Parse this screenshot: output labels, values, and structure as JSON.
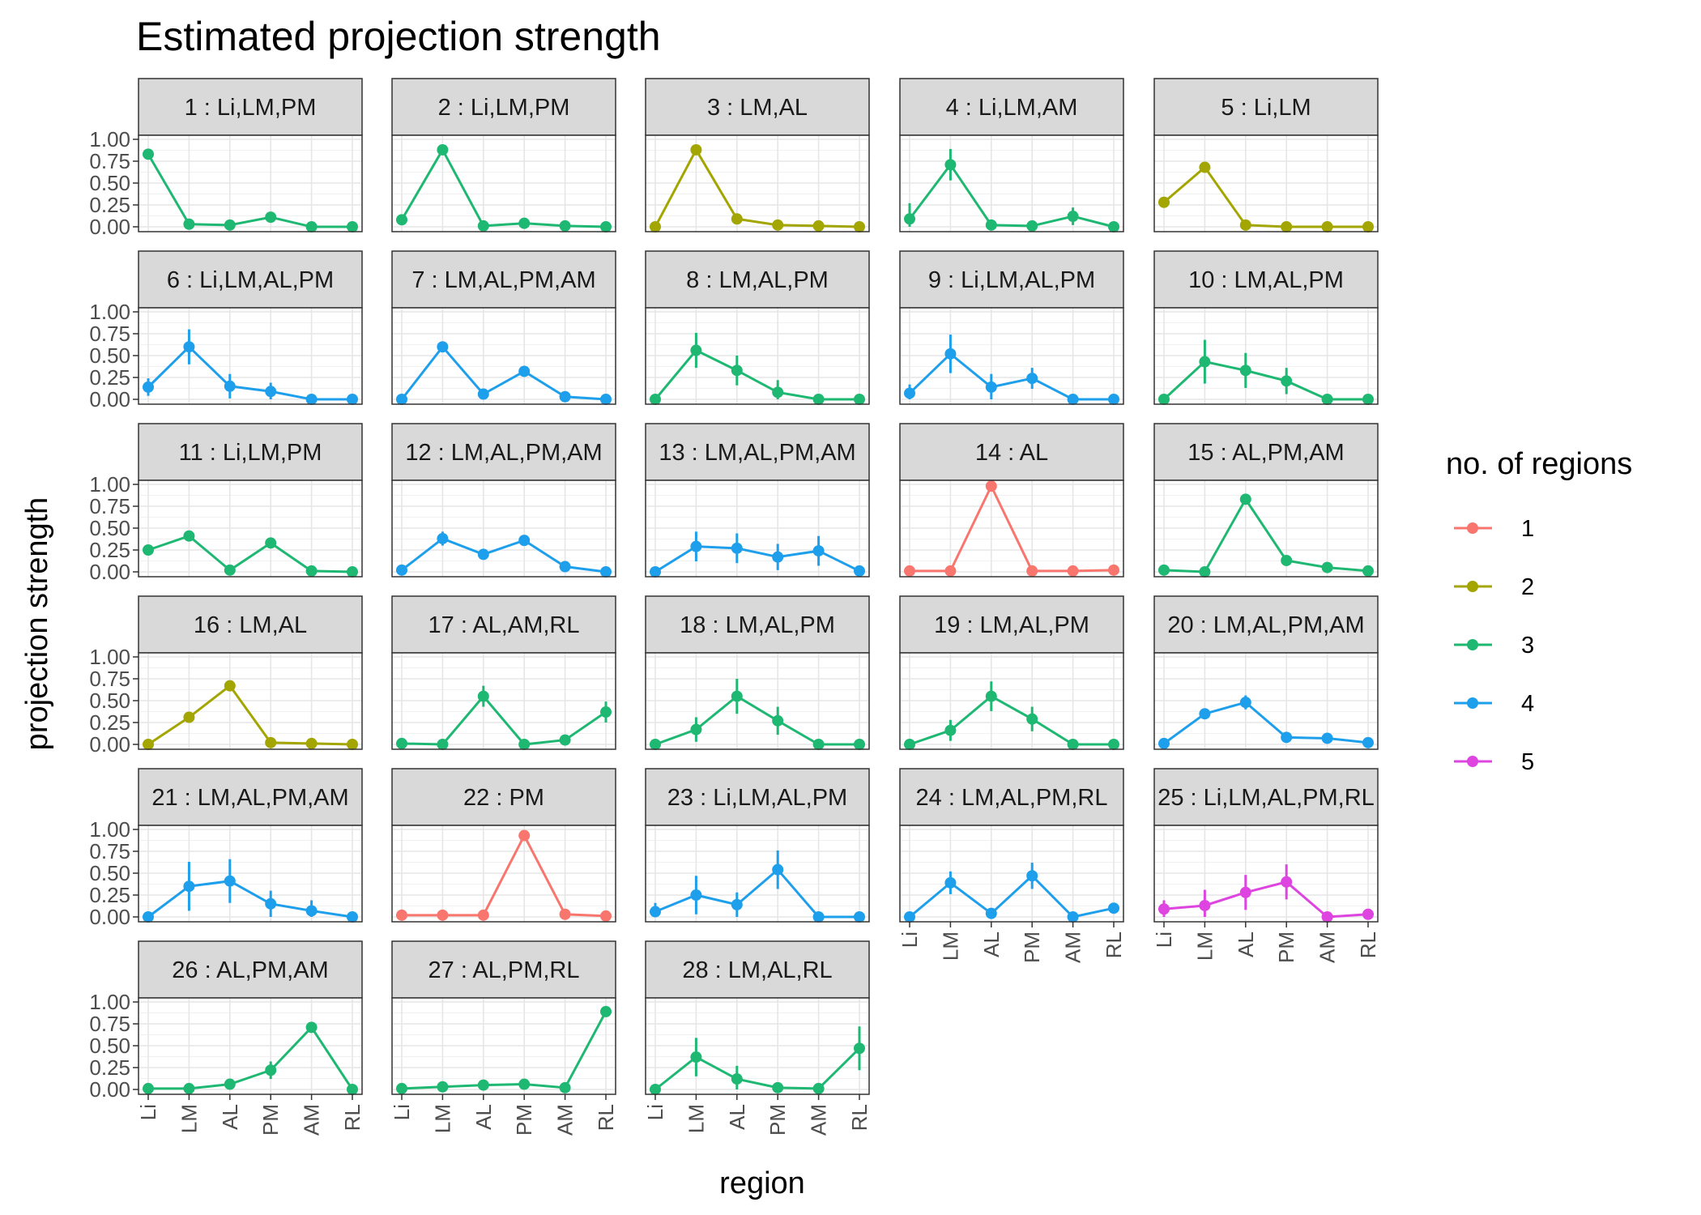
{
  "chart_data": {
    "type": "line",
    "title": "Estimated projection strength",
    "xlabel": "region",
    "ylabel": "projection strength",
    "x_categories": [
      "Li",
      "LM",
      "AL",
      "PM",
      "AM",
      "RL"
    ],
    "ylim": [
      0,
      1
    ],
    "y_ticks": [
      "0.00",
      "0.25",
      "0.50",
      "0.75",
      "1.00"
    ],
    "grid": true,
    "legend": {
      "title": "no. of regions",
      "position": "right",
      "entries": [
        {
          "label": "1",
          "color": "#F8766D"
        },
        {
          "label": "2",
          "color": "#A3A500"
        },
        {
          "label": "3",
          "color": "#1FB873"
        },
        {
          "label": "4",
          "color": "#1E9FEB"
        },
        {
          "label": "5",
          "color": "#DE44E0"
        }
      ]
    },
    "panels": [
      {
        "label": "1 : Li,LM,PM",
        "n_regions": 3,
        "values": [
          0.83,
          0.03,
          0.02,
          0.11,
          0.0,
          0.0
        ],
        "error": [
          0.06,
          0.0,
          0.0,
          0.06,
          0.0,
          0.0
        ]
      },
      {
        "label": "2 : Li,LM,PM",
        "n_regions": 3,
        "values": [
          0.08,
          0.88,
          0.01,
          0.04,
          0.01,
          0.0
        ],
        "error": [
          0.0,
          0.0,
          0.0,
          0.0,
          0.0,
          0.0
        ]
      },
      {
        "label": "3 : LM,AL",
        "n_regions": 2,
        "values": [
          0.0,
          0.88,
          0.09,
          0.02,
          0.01,
          0.0
        ],
        "error": [
          0.0,
          0.0,
          0.0,
          0.0,
          0.0,
          0.0
        ]
      },
      {
        "label": "4 : Li,LM,AM",
        "n_regions": 3,
        "values": [
          0.09,
          0.71,
          0.02,
          0.01,
          0.12,
          0.0
        ],
        "error": [
          0.18,
          0.18,
          0.05,
          0.05,
          0.1,
          0.0
        ]
      },
      {
        "label": "5 : Li,LM",
        "n_regions": 2,
        "values": [
          0.28,
          0.68,
          0.02,
          0.0,
          0.0,
          0.0
        ],
        "error": [
          0.0,
          0.0,
          0.0,
          0.0,
          0.0,
          0.0
        ]
      },
      {
        "label": "6 : Li,LM,AL,PM",
        "n_regions": 4,
        "values": [
          0.14,
          0.6,
          0.15,
          0.09,
          0.0,
          0.0
        ],
        "error": [
          0.1,
          0.2,
          0.14,
          0.1,
          0.0,
          0.0
        ]
      },
      {
        "label": "7 : LM,AL,PM,AM",
        "n_regions": 4,
        "values": [
          0.0,
          0.6,
          0.06,
          0.32,
          0.03,
          0.0
        ],
        "error": [
          0.0,
          0.0,
          0.0,
          0.0,
          0.0,
          0.0
        ]
      },
      {
        "label": "8 : LM,AL,PM",
        "n_regions": 3,
        "values": [
          0.0,
          0.56,
          0.33,
          0.08,
          0.0,
          0.0
        ],
        "error": [
          0.0,
          0.2,
          0.17,
          0.14,
          0.0,
          0.0
        ]
      },
      {
        "label": "9 : Li,LM,AL,PM",
        "n_regions": 4,
        "values": [
          0.07,
          0.52,
          0.14,
          0.24,
          0.0,
          0.0
        ],
        "error": [
          0.1,
          0.22,
          0.15,
          0.12,
          0.0,
          0.0
        ]
      },
      {
        "label": "10 : LM,AL,PM",
        "n_regions": 3,
        "values": [
          0.0,
          0.43,
          0.33,
          0.21,
          0.0,
          0.0
        ],
        "error": [
          0.0,
          0.25,
          0.2,
          0.15,
          0.0,
          0.0
        ]
      },
      {
        "label": "11 : Li,LM,PM",
        "n_regions": 3,
        "values": [
          0.25,
          0.41,
          0.02,
          0.33,
          0.01,
          0.0
        ],
        "error": [
          0.0,
          0.0,
          0.0,
          0.0,
          0.0,
          0.0
        ]
      },
      {
        "label": "12 : LM,AL,PM,AM",
        "n_regions": 4,
        "values": [
          0.02,
          0.38,
          0.2,
          0.36,
          0.06,
          0.0
        ],
        "error": [
          0.0,
          0.08,
          0.0,
          0.0,
          0.0,
          0.0
        ]
      },
      {
        "label": "13 : LM,AL,PM,AM",
        "n_regions": 4,
        "values": [
          0.0,
          0.29,
          0.27,
          0.17,
          0.24,
          0.01
        ],
        "error": [
          0.0,
          0.17,
          0.17,
          0.15,
          0.17,
          0.0
        ]
      },
      {
        "label": "14 : AL",
        "n_regions": 1,
        "values": [
          0.01,
          0.01,
          0.98,
          0.01,
          0.01,
          0.02
        ],
        "error": [
          0.0,
          0.0,
          0.0,
          0.0,
          0.0,
          0.0
        ]
      },
      {
        "label": "15 : AL,PM,AM",
        "n_regions": 3,
        "values": [
          0.02,
          0.0,
          0.83,
          0.13,
          0.05,
          0.01
        ],
        "error": [
          0.0,
          0.0,
          0.0,
          0.0,
          0.0,
          0.0
        ]
      },
      {
        "label": "16 : LM,AL",
        "n_regions": 2,
        "values": [
          0.0,
          0.31,
          0.67,
          0.02,
          0.01,
          0.0
        ],
        "error": [
          0.0,
          0.0,
          0.0,
          0.0,
          0.0,
          0.0
        ]
      },
      {
        "label": "17 : AL,AM,RL",
        "n_regions": 3,
        "values": [
          0.01,
          0.0,
          0.55,
          0.0,
          0.05,
          0.37
        ],
        "error": [
          0.0,
          0.0,
          0.12,
          0.0,
          0.0,
          0.12
        ]
      },
      {
        "label": "18 : LM,AL,PM",
        "n_regions": 3,
        "values": [
          0.0,
          0.17,
          0.55,
          0.27,
          0.0,
          0.0
        ],
        "error": [
          0.0,
          0.14,
          0.2,
          0.16,
          0.0,
          0.0
        ]
      },
      {
        "label": "19 : LM,AL,PM",
        "n_regions": 3,
        "values": [
          0.0,
          0.16,
          0.55,
          0.29,
          0.0,
          0.0
        ],
        "error": [
          0.0,
          0.12,
          0.17,
          0.14,
          0.0,
          0.0
        ]
      },
      {
        "label": "20 : LM,AL,PM,AM",
        "n_regions": 4,
        "values": [
          0.01,
          0.35,
          0.48,
          0.08,
          0.07,
          0.02
        ],
        "error": [
          0.0,
          0.0,
          0.08,
          0.0,
          0.0,
          0.0
        ]
      },
      {
        "label": "21 : LM,AL,PM,AM",
        "n_regions": 4,
        "values": [
          0.0,
          0.35,
          0.41,
          0.15,
          0.07,
          0.0
        ],
        "error": [
          0.0,
          0.28,
          0.25,
          0.15,
          0.12,
          0.0
        ]
      },
      {
        "label": "22 : PM",
        "n_regions": 1,
        "values": [
          0.02,
          0.02,
          0.02,
          0.93,
          0.03,
          0.01
        ],
        "error": [
          0.0,
          0.0,
          0.0,
          0.0,
          0.0,
          0.0
        ]
      },
      {
        "label": "23 : Li,LM,AL,PM",
        "n_regions": 4,
        "values": [
          0.06,
          0.25,
          0.14,
          0.54,
          0.0,
          0.0
        ],
        "error": [
          0.1,
          0.22,
          0.14,
          0.22,
          0.0,
          0.0
        ]
      },
      {
        "label": "24 : LM,AL,PM,RL",
        "n_regions": 4,
        "values": [
          0.0,
          0.39,
          0.04,
          0.47,
          0.0,
          0.1
        ],
        "error": [
          0.0,
          0.13,
          0.0,
          0.15,
          0.0,
          0.0
        ]
      },
      {
        "label": "25 : Li,LM,AL,PM,RL",
        "n_regions": 5,
        "values": [
          0.09,
          0.13,
          0.28,
          0.4,
          0.0,
          0.03
        ],
        "error": [
          0.1,
          0.18,
          0.2,
          0.2,
          0.0,
          0.0
        ]
      },
      {
        "label": "26 : AL,PM,AM",
        "n_regions": 3,
        "values": [
          0.01,
          0.01,
          0.06,
          0.22,
          0.71,
          0.0
        ],
        "error": [
          0.0,
          0.0,
          0.0,
          0.1,
          0.0,
          0.0
        ]
      },
      {
        "label": "27 : AL,PM,RL",
        "n_regions": 3,
        "values": [
          0.01,
          0.03,
          0.05,
          0.06,
          0.02,
          0.89
        ],
        "error": [
          0.0,
          0.0,
          0.0,
          0.0,
          0.0,
          0.0
        ]
      },
      {
        "label": "28 : LM,AL,RL",
        "n_regions": 3,
        "values": [
          0.0,
          0.37,
          0.12,
          0.02,
          0.01,
          0.47
        ],
        "error": [
          0.0,
          0.22,
          0.15,
          0.0,
          0.0,
          0.25
        ]
      }
    ]
  }
}
